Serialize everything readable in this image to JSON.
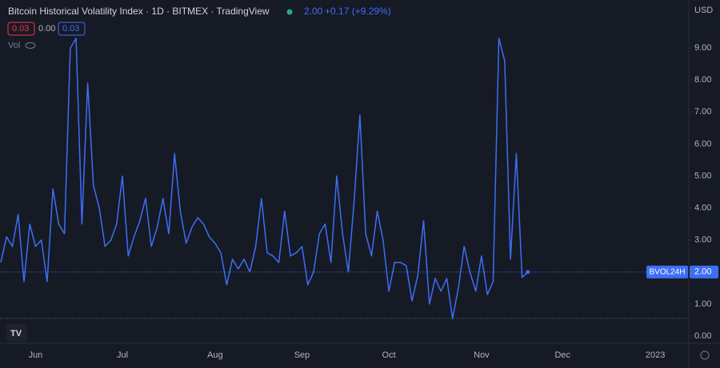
{
  "header": {
    "title": "Bitcoin Historical Volatility Index · 1D · BITMEX · TradingView",
    "last": "2.00",
    "change": "+0.17 (+9.29%)",
    "currency": "USD",
    "legend": [
      "0.03",
      "0.00",
      "0.03"
    ],
    "vol": "Vol"
  },
  "chart_data": {
    "type": "line",
    "categories": [
      null,
      null,
      null,
      null,
      null,
      null,
      "Jun",
      null,
      null,
      null,
      null,
      null,
      null,
      null,
      null,
      null,
      null,
      null,
      null,
      null,
      null,
      "Jul",
      null,
      null,
      null,
      null,
      null,
      null,
      null,
      null,
      null,
      null,
      null,
      null,
      null,
      null,
      null,
      "Aug",
      null,
      null,
      null,
      null,
      null,
      null,
      null,
      null,
      null,
      null,
      null,
      null,
      null,
      null,
      "Sep",
      null,
      null,
      null,
      null,
      null,
      null,
      null,
      null,
      null,
      null,
      null,
      null,
      null,
      null,
      "Oct",
      null,
      null,
      null,
      null,
      null,
      null,
      null,
      null,
      null,
      null,
      null,
      null,
      null,
      null,
      null,
      "Nov",
      null,
      null,
      null,
      null,
      null,
      null,
      null,
      null,
      null,
      null,
      null,
      null,
      null,
      "Dec",
      null,
      null,
      null,
      null,
      null,
      null,
      null,
      null,
      null,
      null,
      null,
      null,
      null,
      null,
      null,
      "2023",
      null,
      null,
      null,
      null,
      null
    ],
    "series": [
      {
        "name": "BVOL24H",
        "color": "#3d6ef5",
        "values": [
          2.3,
          3.1,
          2.8,
          3.8,
          1.7,
          3.5,
          2.8,
          3.0,
          1.7,
          4.6,
          3.5,
          3.2,
          9.0,
          9.3,
          3.5,
          7.9,
          4.7,
          4.0,
          2.8,
          3.0,
          3.5,
          5.0,
          2.5,
          3.1,
          3.6,
          4.3,
          2.8,
          3.4,
          4.3,
          3.2,
          5.7,
          3.9,
          2.9,
          3.4,
          3.7,
          3.5,
          3.1,
          2.9,
          2.6,
          1.6,
          2.4,
          2.1,
          2.4,
          2.0,
          2.8,
          4.3,
          2.6,
          2.5,
          2.3,
          3.9,
          2.5,
          2.6,
          2.8,
          1.6,
          2.0,
          3.2,
          3.5,
          2.3,
          5.0,
          3.2,
          2.0,
          4.2,
          6.9,
          3.2,
          2.5,
          3.9,
          3.0,
          1.4,
          2.3,
          2.3,
          2.2,
          1.1,
          1.9,
          3.6,
          1.0,
          1.8,
          1.4,
          1.8,
          0.55,
          1.5,
          2.8,
          2.0,
          1.4,
          2.5,
          1.3,
          1.7,
          9.3,
          8.6,
          2.4,
          5.7,
          1.83,
          2.0,
          null,
          null,
          null,
          null,
          null,
          null,
          null,
          null,
          null,
          null,
          null,
          null,
          null,
          null,
          null,
          null,
          null,
          null,
          null,
          null,
          null,
          null,
          null,
          null,
          null,
          null,
          null
        ],
        "value_labels": {
          "91": "2.00"
        }
      }
    ],
    "ylim": [
      -0.2,
      10.5
    ],
    "yticks": [
      {
        "value": 0,
        "label": "0.00"
      },
      {
        "value": 1,
        "label": "1.00"
      },
      {
        "value": 2,
        "label": "2.00"
      },
      {
        "value": 3,
        "label": "3.00"
      },
      {
        "value": 4,
        "label": "4.00"
      },
      {
        "value": 5,
        "label": "5.00"
      },
      {
        "value": 6,
        "label": "6.00"
      },
      {
        "value": 7,
        "label": "7.00"
      },
      {
        "value": 8,
        "label": "8.00"
      },
      {
        "value": 9,
        "label": "9.00"
      }
    ],
    "grid": false
  }
}
